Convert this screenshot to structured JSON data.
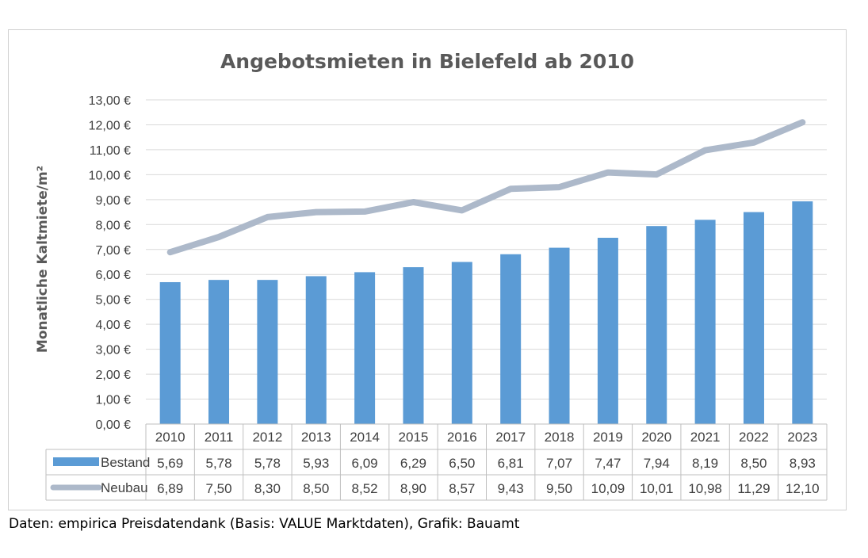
{
  "chart_data": {
    "type": "bar",
    "title": "Angebotsmieten in Bielefeld ab 2010",
    "xlabel": "",
    "ylabel": "Monatliche Kaltmiete/m²",
    "ylim": [
      0,
      13
    ],
    "yticks": [
      "0,00 €",
      "1,00 €",
      "2,00 €",
      "3,00 €",
      "4,00 €",
      "5,00 €",
      "6,00 €",
      "7,00 €",
      "8,00 €",
      "9,00 €",
      "10,00 €",
      "11,00 €",
      "12,00 €",
      "13,00 €"
    ],
    "grid": true,
    "legend": "data table",
    "categories": [
      "2010",
      "2011",
      "2012",
      "2013",
      "2014",
      "2015",
      "2016",
      "2017",
      "2018",
      "2019",
      "2020",
      "2021",
      "2022",
      "2023"
    ],
    "series": [
      {
        "name": "Bestand",
        "type": "bar",
        "color": "#5b9bd5",
        "values": [
          5.69,
          5.78,
          5.78,
          5.93,
          6.09,
          6.29,
          6.5,
          6.81,
          7.07,
          7.47,
          7.94,
          8.19,
          8.5,
          8.93
        ],
        "labels": [
          "5,69",
          "5,78",
          "5,78",
          "5,93",
          "6,09",
          "6,29",
          "6,50",
          "6,81",
          "7,07",
          "7,47",
          "7,94",
          "8,19",
          "8,50",
          "8,93"
        ]
      },
      {
        "name": "Neubau",
        "type": "line",
        "color": "#adb9ca",
        "values": [
          6.89,
          7.5,
          8.3,
          8.5,
          8.52,
          8.9,
          8.57,
          9.43,
          9.5,
          10.09,
          10.01,
          10.98,
          11.29,
          12.1
        ],
        "labels": [
          "6,89",
          "7,50",
          "8,30",
          "8,50",
          "8,52",
          "8,90",
          "8,57",
          "9,43",
          "9,50",
          "10,09",
          "10,01",
          "10,98",
          "11,29",
          "12,10"
        ]
      }
    ]
  },
  "source": "Daten: empirica Preisdatendank (Basis: VALUE Marktdaten), Grafik: Bauamt"
}
